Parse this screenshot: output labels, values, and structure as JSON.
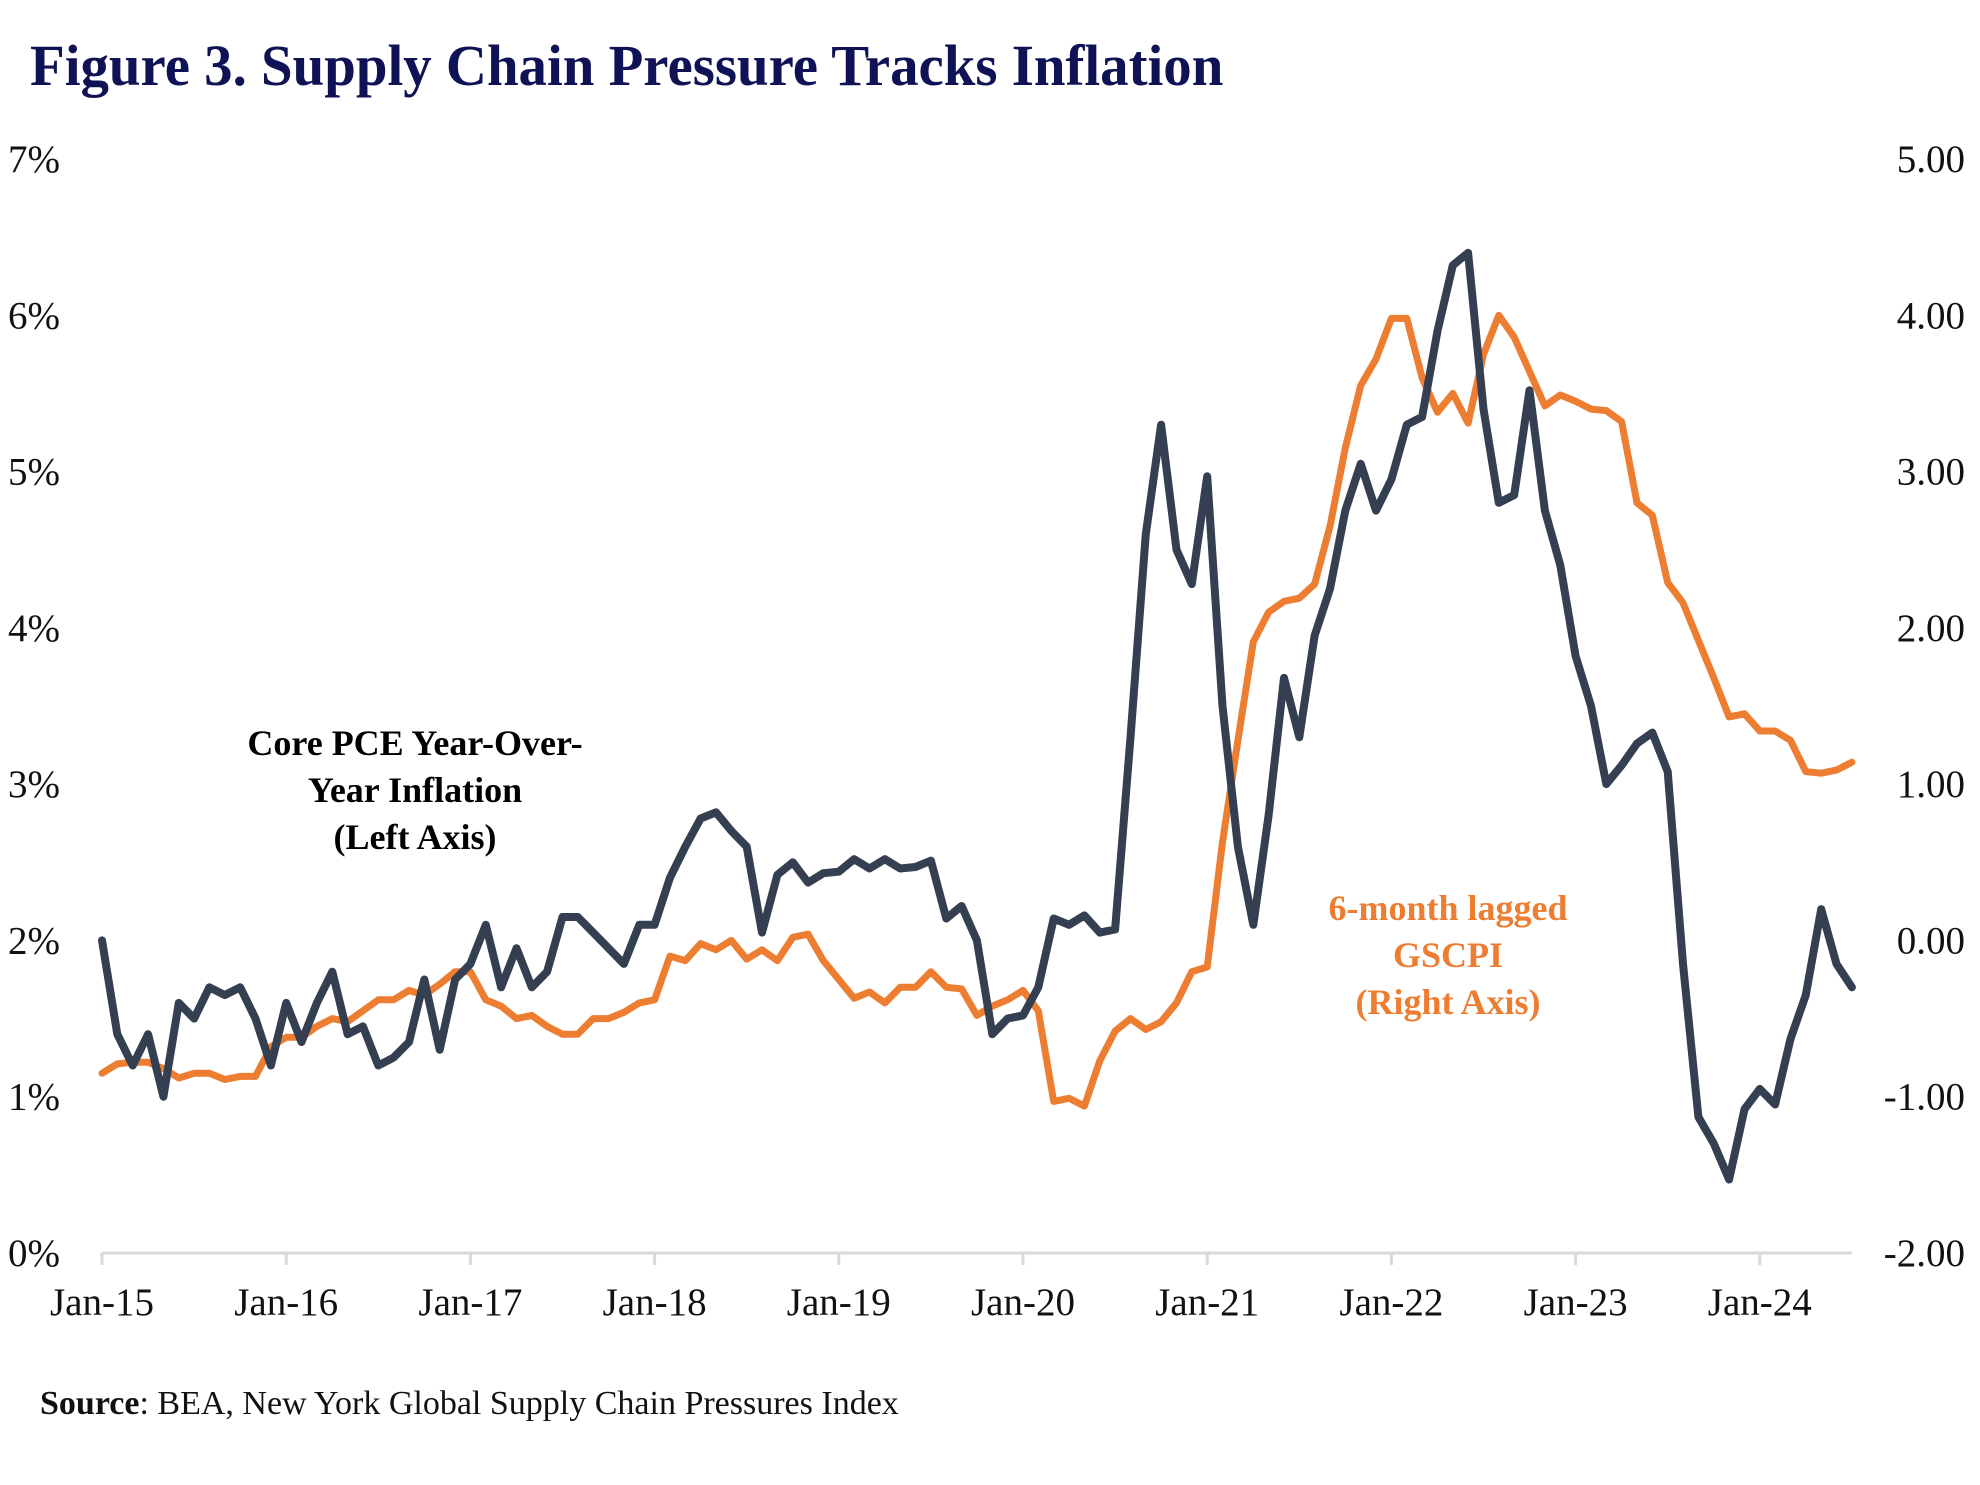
{
  "title": "Figure 3. Supply Chain Pressure Tracks Inflation",
  "source": {
    "label": "Source",
    "text": ": BEA, New York Global Supply Chain Pressures Index"
  },
  "chart_data": {
    "type": "line",
    "title": "Figure 3. Supply Chain Pressure Tracks Inflation",
    "xlabel": "",
    "ylabel_left": "",
    "ylabel_right": "",
    "x_start": "Jan-15",
    "x_end": "Jul-24",
    "frequency": "monthly",
    "x_tick_labels": [
      "Jan-15",
      "Jan-16",
      "Jan-17",
      "Jan-18",
      "Jan-19",
      "Jan-20",
      "Jan-21",
      "Jan-22",
      "Jan-23",
      "Jan-24"
    ],
    "y_left": {
      "ylim": [
        0,
        7
      ],
      "tick_labels": [
        "0%",
        "1%",
        "2%",
        "3%",
        "4%",
        "5%",
        "6%",
        "7%"
      ]
    },
    "y_right": {
      "ylim": [
        -2,
        5
      ],
      "tick_labels": [
        "-2.00",
        "-1.00",
        "0.00",
        "1.00",
        "2.00",
        "3.00",
        "4.00",
        "5.00"
      ]
    },
    "grid": false,
    "legend": "none (inline annotations)",
    "annotations": [
      {
        "series": "core_pce",
        "lines": [
          "Core PCE Year-Over-",
          "Year Inflation",
          "(Left Axis)"
        ],
        "color": "#000000"
      },
      {
        "series": "gscpi",
        "lines": [
          "6-month lagged",
          "GSCPI",
          "(Right Axis)"
        ],
        "color": "#ed7d31"
      }
    ],
    "series": [
      {
        "id": "core_pce",
        "name": "Core PCE Year-Over-Year Inflation (Left Axis)",
        "axis": "left",
        "color": "#343f51",
        "unit": "%",
        "values": [
          2.0,
          1.4,
          1.2,
          1.4,
          1.0,
          1.6,
          1.5,
          1.7,
          1.65,
          1.7,
          1.5,
          1.2,
          1.6,
          1.35,
          1.6,
          1.8,
          1.4,
          1.45,
          1.2,
          1.25,
          1.35,
          1.75,
          1.3,
          1.75,
          1.85,
          2.1,
          1.7,
          1.95,
          1.7,
          1.8,
          2.15,
          2.15,
          2.05,
          1.95,
          1.85,
          2.1,
          2.1,
          2.4,
          2.6,
          2.78,
          2.82,
          2.7,
          2.6,
          2.05,
          2.42,
          2.5,
          2.37,
          2.43,
          2.44,
          2.52,
          2.46,
          2.52,
          2.46,
          2.47,
          2.51,
          2.14,
          2.22,
          2.0,
          1.4,
          1.5,
          1.52,
          1.7,
          2.14,
          2.1,
          2.16,
          2.05,
          2.07,
          3.3,
          4.6,
          5.3,
          4.5,
          4.28,
          4.97,
          3.5,
          2.6,
          2.1,
          2.8,
          3.68,
          3.3,
          3.95,
          4.25,
          4.75,
          5.05,
          4.75,
          4.95,
          5.3,
          5.35,
          5.9,
          6.32,
          6.4,
          5.4,
          4.8,
          4.85,
          5.52,
          4.75,
          4.4,
          3.82,
          3.5,
          3.0,
          3.12,
          3.26,
          3.33,
          3.08,
          1.85,
          0.87,
          0.7,
          0.47,
          0.92,
          1.05,
          0.95,
          1.37,
          1.65,
          2.2,
          1.85,
          1.7
        ]
      },
      {
        "id": "gscpi",
        "name": "6-month lagged GSCPI (Right Axis)",
        "axis": "right",
        "color": "#ed7d31",
        "unit": "index",
        "values": [
          -0.85,
          -0.79,
          -0.78,
          -0.78,
          -0.82,
          -0.88,
          -0.85,
          -0.85,
          -0.89,
          -0.87,
          -0.87,
          -0.68,
          -0.62,
          -0.62,
          -0.55,
          -0.5,
          -0.52,
          -0.45,
          -0.38,
          -0.38,
          -0.32,
          -0.35,
          -0.28,
          -0.2,
          -0.2,
          -0.38,
          -0.42,
          -0.5,
          -0.48,
          -0.55,
          -0.6,
          -0.6,
          -0.5,
          -0.5,
          -0.46,
          -0.4,
          -0.38,
          -0.1,
          -0.13,
          -0.02,
          -0.06,
          0.0,
          -0.12,
          -0.06,
          -0.13,
          0.02,
          0.04,
          -0.13,
          -0.25,
          -0.37,
          -0.33,
          -0.4,
          -0.3,
          -0.3,
          -0.2,
          -0.3,
          -0.31,
          -0.48,
          -0.42,
          -0.38,
          -0.32,
          -0.45,
          -1.03,
          -1.01,
          -1.06,
          -0.77,
          -0.58,
          -0.5,
          -0.57,
          -0.52,
          -0.4,
          -0.2,
          -0.17,
          0.63,
          1.28,
          1.91,
          2.1,
          2.17,
          2.19,
          2.28,
          2.65,
          3.15,
          3.55,
          3.72,
          3.98,
          3.98,
          3.6,
          3.38,
          3.5,
          3.31,
          3.75,
          4.0,
          3.86,
          3.64,
          3.42,
          3.49,
          3.45,
          3.4,
          3.39,
          3.32,
          2.8,
          2.72,
          2.29,
          2.16,
          1.92,
          1.68,
          1.43,
          1.45,
          1.34,
          1.34,
          1.28,
          1.08,
          1.07,
          1.09,
          1.14
        ]
      }
    ]
  }
}
